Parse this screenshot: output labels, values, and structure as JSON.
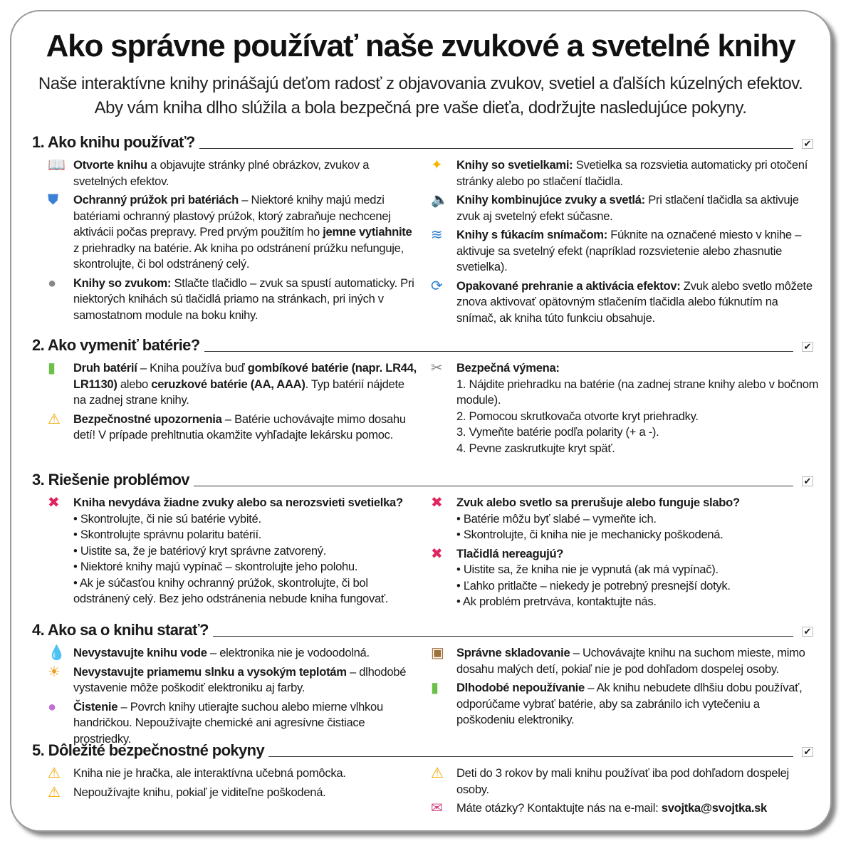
{
  "title": "Ako správne používať naše zvukové a svetelné knihy",
  "subtitle": [
    "Naše interaktívne knihy prinášajú deťom radosť z objavovania zvukov, svetiel a ďalších kúzelných efektov.",
    "Aby vám kniha dlho slúžila a bola bezpečná pre vaše dieťa, dodržujte nasledujúce pokyny."
  ],
  "sections": [
    {
      "title": "1. Ako knihu používať?",
      "left": [
        {
          "icon": "book-icon",
          "text": [
            {
              "b": true,
              "t": "Otvorte knihu"
            },
            {
              "t": " a objavujte stránky plné obrázkov, zvukov a svetelných efektov."
            }
          ]
        },
        {
          "icon": "shield-icon",
          "text": [
            {
              "b": true,
              "t": "Ochranný prúžok pri batériách"
            },
            {
              "t": " – Niektoré knihy majú medzi batériami ochranný plastový prúžok, ktorý zabraňuje nechcenej aktivácii počas prepravy. Pred prvým použitím ho "
            },
            {
              "b": true,
              "t": "jemne vytiahnite"
            },
            {
              "t": " z priehradky na batérie. Ak kniha po odstránení prúžku nefunguje, skontrolujte, či bol odstránený celý."
            }
          ]
        },
        {
          "icon": "button-icon",
          "text": [
            {
              "b": true,
              "t": "Knihy so zvukom:"
            },
            {
              "t": " Stlačte tlačidlo – zvuk sa spustí automaticky. Pri niektorých knihách sú tlačidlá priamo na stránkach, pri iných v samostatnom module na boku knihy."
            }
          ]
        }
      ],
      "right": [
        {
          "icon": "sparkles-icon",
          "text": [
            {
              "b": true,
              "t": "Knihy so svetielkami:"
            },
            {
              "t": " Svetielka sa rozsvietia automaticky pri otočení stránky alebo po stlačení tlačidla."
            }
          ]
        },
        {
          "icon": "speaker-bulb-icon",
          "text": [
            {
              "b": true,
              "t": "Knihy kombinujúce zvuky a svetlá:"
            },
            {
              "t": " Pri stlačení tlačidla sa aktivuje zvuk aj svetelný efekt súčasne."
            }
          ]
        },
        {
          "icon": "blow-sensor-icon",
          "text": [
            {
              "b": true,
              "t": "Knihy s fúkacím snímačom:"
            },
            {
              "t": " Fúknite na označené miesto v knihe – aktivuje sa svetelný efekt (napríklad rozsvietenie alebo zhasnutie svetielka)."
            }
          ]
        },
        {
          "icon": "repeat-icon",
          "text": [
            {
              "b": true,
              "t": "Opakované prehranie a aktivácia efektov:"
            },
            {
              "t": " Zvuk alebo svetlo môžete znova aktivovať opätovným stlačením tlačidla alebo fúknutím na snímač, ak kniha túto funkciu obsahuje."
            }
          ]
        }
      ]
    },
    {
      "title": "2. Ako vymeniť batérie?",
      "left": [
        {
          "icon": "battery-icon",
          "text": [
            {
              "b": true,
              "t": "Druh batérií"
            },
            {
              "t": " – Kniha používa buď "
            },
            {
              "b": true,
              "t": "gombíkové batérie (napr. LR44, LR1130)"
            },
            {
              "t": " alebo "
            },
            {
              "b": true,
              "t": "ceruzkové batérie (AA, AAA)"
            },
            {
              "t": ". Typ batérií nájdete na zadnej strane knihy."
            }
          ]
        },
        {
          "icon": "warning-icon",
          "text": [
            {
              "b": true,
              "t": "Bezpečnostné upozornenia"
            },
            {
              "t": " – Batérie uchovávajte mimo dosahu detí! V prípade prehltnutia okamžite vyhľadajte lekársku pomoc."
            }
          ]
        }
      ],
      "right": [
        {
          "icon": "tools-icon",
          "text": [
            {
              "b": true,
              "t": "Bezpečná výmena:"
            }
          ],
          "list": [
            "1. Nájdite priehradku na batérie (na zadnej strane knihy alebo v bočnom module).",
            "2. Pomocou skrutkovača otvorte kryt priehradky.",
            "3. Vymeňte batérie podľa polarity (+ a -).",
            "4. Pevne zaskrutkujte kryt späť."
          ]
        }
      ]
    },
    {
      "title": "3. Riešenie problémov",
      "left": [
        {
          "icon": "cross-icon",
          "text": [
            {
              "b": true,
              "t": "Kniha nevydáva žiadne zvuky alebo sa nerozsvieti svetielka?"
            }
          ],
          "list": [
            "• Skontrolujte, či nie sú batérie vybité.",
            "• Skontrolujte správnu polaritu batérií.",
            "• Uistite sa, že je batériový kryt správne zatvorený.",
            "• Niektoré knihy majú vypínač – skontrolujte jeho polohu.",
            "• Ak je súčasťou knihy ochranný prúžok, skontrolujte, či bol odstránený celý. Bez jeho odstránenia nebude kniha fungovať."
          ]
        }
      ],
      "right": [
        {
          "icon": "cross-icon",
          "text": [
            {
              "b": true,
              "t": "Zvuk alebo svetlo sa prerušuje alebo funguje slabo?"
            }
          ],
          "list": [
            "• Batérie môžu byť slabé – vymeňte ich.",
            "• Skontrolujte, či kniha nie je mechanicky poškodená."
          ]
        },
        {
          "icon": "cross-icon",
          "text": [
            {
              "b": true,
              "t": "Tlačidlá nereagujú?"
            }
          ],
          "list": [
            "• Uistite sa, že kniha nie je vypnutá (ak má vypínač).",
            "• Ľahko pritlačte – niekedy je potrebný presnejší dotyk.",
            "• Ak problém pretrváva, kontaktujte nás."
          ]
        }
      ]
    },
    {
      "title": "4. Ako sa o knihu starať?",
      "left": [
        {
          "icon": "water-drops-icon",
          "text": [
            {
              "b": true,
              "t": "Nevystavujte knihu vode"
            },
            {
              "t": " – elektronika nie je vodoodolná."
            }
          ]
        },
        {
          "icon": "hot-face-icon",
          "text": [
            {
              "b": true,
              "t": "Nevystavujte priamemu slnku a vysokým teplotám"
            },
            {
              "t": " – dlhodobé vystavenie môže poškodiť elektroniku aj farby."
            }
          ]
        },
        {
          "icon": "sponge-icon",
          "text": [
            {
              "b": true,
              "t": "Čistenie"
            },
            {
              "t": " – Povrch knihy utierajte suchou alebo mierne vlhkou handričkou. Nepoužívajte chemické ani agresívne čistiace prostriedky."
            }
          ]
        }
      ],
      "right": [
        {
          "icon": "package-icon",
          "text": [
            {
              "b": true,
              "t": "Správne skladovanie"
            },
            {
              "t": " – Uchovávajte knihu na suchom mieste, mimo dosahu malých detí, pokiaľ nie je pod dohľadom dospelej osoby."
            }
          ]
        },
        {
          "icon": "battery-icon",
          "text": [
            {
              "b": true,
              "t": "Dlhodobé nepoužívanie"
            },
            {
              "t": " – Ak knihu nebudete dlhšiu dobu používať, odporúčame vybrať batérie, aby sa zabránilo ich vytečeniu a poškodeniu elektroniky."
            }
          ]
        }
      ]
    },
    {
      "title": "5. Dôležité bezpečnostné pokyny",
      "left": [
        {
          "icon": "warning-icon",
          "text": [
            {
              "t": "Kniha nie je hračka, ale interaktívna učebná pomôcka."
            }
          ]
        },
        {
          "icon": "warning-icon",
          "text": [
            {
              "t": "Nepoužívajte knihu, pokiaľ je viditeľne poškodená."
            }
          ]
        }
      ],
      "right": [
        {
          "icon": "warning-icon",
          "text": [
            {
              "t": "Deti do 3 rokov by mali knihu používať iba pod dohľadom dospelej osoby."
            }
          ]
        },
        {
          "icon": "inbox-icon",
          "text": [
            {
              "t": "Máte otázky? Kontaktujte nás na e-mail: "
            },
            {
              "b": true,
              "t": "svojtka@svojtka.sk"
            }
          ]
        }
      ]
    }
  ],
  "colors": {
    "warning": "#f2a800",
    "cross": "#e0245e",
    "shield": "#3b7fd6"
  }
}
